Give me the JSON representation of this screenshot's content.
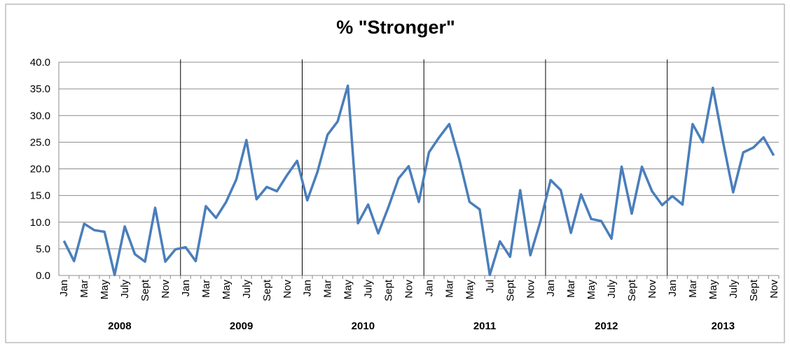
{
  "chart_data": {
    "type": "line",
    "title": "% \"Stronger\"",
    "categories": [
      "Jan",
      null,
      "Mar",
      null,
      "May",
      null,
      "July",
      null,
      "Sept",
      null,
      "Nov",
      null,
      "Jan",
      null,
      "Mar",
      null,
      "May",
      null,
      "July",
      null,
      "Sept",
      null,
      "Nov",
      null,
      "Jan",
      null,
      "Mar",
      null,
      "May",
      null,
      "July",
      null,
      "Sept",
      null,
      "Nov",
      null,
      "Jan",
      null,
      "Mar",
      null,
      "May",
      null,
      "Jul",
      null,
      "Sept",
      null,
      "Nov",
      null,
      "Jan",
      null,
      "Mar",
      null,
      "May",
      null,
      "July",
      null,
      "Sept",
      null,
      "Nov",
      null,
      "Jan",
      null,
      "Mar",
      null,
      "May",
      null,
      "July",
      null,
      "Sept",
      null,
      "Nov"
    ],
    "year_groups": [
      "2008",
      "2009",
      "2010",
      "2011",
      "2012",
      "2013"
    ],
    "series": [
      {
        "name": "% Stronger",
        "color": "#4a7ebb",
        "values": [
          6.5,
          2.7,
          9.7,
          8.5,
          8.2,
          0.1,
          9.2,
          4.0,
          2.6,
          12.7,
          2.6,
          4.9,
          5.3,
          2.7,
          13.0,
          10.8,
          13.8,
          18.0,
          25.4,
          14.3,
          16.6,
          15.8,
          18.8,
          21.5,
          14.1,
          19.4,
          26.4,
          28.9,
          35.6,
          9.8,
          13.3,
          7.9,
          12.8,
          18.2,
          20.5,
          13.8,
          23.1,
          25.9,
          28.4,
          21.7,
          13.8,
          12.4,
          0.1,
          6.4,
          3.5,
          16.0,
          3.8,
          10.2,
          17.9,
          16.0,
          8.0,
          15.2,
          10.6,
          10.2,
          6.9,
          20.4,
          11.6,
          20.4,
          15.8,
          13.2,
          14.9,
          13.3,
          28.4,
          25.0,
          35.2,
          25.1,
          15.6,
          23.1,
          24.0,
          25.9,
          22.5
        ]
      }
    ],
    "ylim": [
      0,
      40
    ],
    "yticks": [
      {
        "value": 0,
        "label": "0.0"
      },
      {
        "value": 5,
        "label": "5.0"
      },
      {
        "value": 10,
        "label": "10.0"
      },
      {
        "value": 15,
        "label": "15.0"
      },
      {
        "value": 20,
        "label": "20.0"
      },
      {
        "value": 25,
        "label": "25.0"
      },
      {
        "value": 30,
        "label": "30.0"
      },
      {
        "value": 35,
        "label": "35.0"
      },
      {
        "value": 40,
        "label": "40.0"
      }
    ],
    "grid": true
  }
}
